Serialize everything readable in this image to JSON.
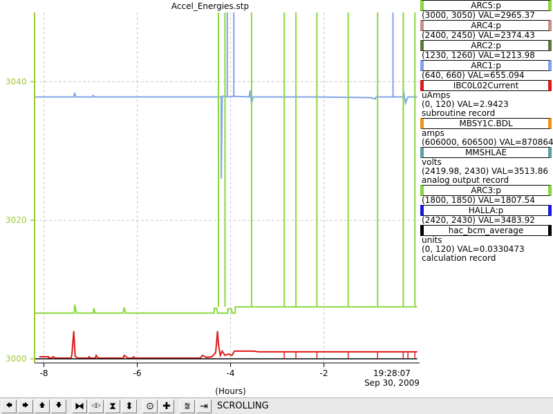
{
  "chart_data": {
    "type": "line",
    "title": "Accel_Energies.stp",
    "xlabel": "(Hours)",
    "x_ticks": [
      -8,
      -6,
      -4,
      -2
    ],
    "x_tick_labels": [
      "-8",
      "-6",
      "-4",
      "-2"
    ],
    "xlim": [
      -8.2,
      0.05
    ],
    "end_time_label": "19:28:07",
    "end_date_label": "Sep 30, 2009",
    "ylim": [
      2999.5,
      3050
    ],
    "y_ticks": [
      3000,
      3020,
      3040
    ],
    "y_tick_labels": [
      "3000",
      "3020",
      "3040"
    ],
    "axis_color": "#a0c838",
    "grid": true,
    "series": [
      {
        "name": "ARC1:p",
        "color": "#7ea4e6",
        "base": 3037.8,
        "points": [
          [
            -8.2,
            3037.8
          ],
          [
            -7.36,
            3037.8
          ],
          [
            -7.34,
            3038.4
          ],
          [
            -7.32,
            3037.8
          ],
          [
            -6.95,
            3037.8
          ],
          [
            -6.95,
            3038.0
          ],
          [
            -6.9,
            3037.8
          ],
          [
            -4.2,
            3037.8
          ],
          [
            -4.2,
            3026.0
          ],
          [
            -4.18,
            3037.9
          ],
          [
            -4.0,
            3037.8
          ],
          [
            -3.95,
            3037.9
          ],
          [
            -3.6,
            3037.8
          ],
          [
            -3.58,
            3038.7
          ],
          [
            -3.55,
            3036.8
          ],
          [
            -3.52,
            3037.8
          ],
          [
            -2.2,
            3037.8
          ],
          [
            -1.0,
            3037.7
          ],
          [
            -0.9,
            3037.5
          ],
          [
            -0.88,
            3037.8
          ],
          [
            -0.3,
            3037.8
          ],
          [
            -0.3,
            3038.8
          ],
          [
            -0.25,
            3036.9
          ],
          [
            -0.2,
            3037.8
          ],
          [
            0,
            3037.8
          ]
        ],
        "spikes": [
          {
            "x": -4.07,
            "top": 3050
          },
          {
            "x": -3.93,
            "top": 3050
          },
          {
            "x": -0.52,
            "top": 3050
          }
        ]
      },
      {
        "name": "ARC3:p",
        "color": "#88d83c",
        "points": [
          [
            -8.2,
            3006.6
          ],
          [
            -7.35,
            3006.6
          ],
          [
            -7.34,
            3007.8
          ],
          [
            -7.3,
            3006.6
          ],
          [
            -6.94,
            3006.6
          ],
          [
            -6.93,
            3007.3
          ],
          [
            -6.9,
            3006.6
          ],
          [
            -6.3,
            3006.6
          ],
          [
            -6.28,
            3007.4
          ],
          [
            -6.25,
            3006.6
          ],
          [
            -4.35,
            3006.6
          ],
          [
            -4.35,
            3007.3
          ],
          [
            -4.3,
            3007.3
          ],
          [
            -4.28,
            3006.6
          ],
          [
            -4.06,
            3006.6
          ],
          [
            -4.06,
            3007.2
          ],
          [
            -3.98,
            3007.2
          ],
          [
            -3.97,
            3006.6
          ],
          [
            -3.9,
            3006.6
          ],
          [
            -3.9,
            3007.5
          ],
          [
            0,
            3007.5
          ]
        ],
        "spikes": [
          {
            "x": -4.26,
            "top": 3050
          },
          {
            "x": -4.12,
            "top": 3050
          },
          {
            "x": -3.55,
            "top": 3050
          },
          {
            "x": -2.85,
            "top": 3050
          },
          {
            "x": -2.6,
            "top": 3050
          },
          {
            "x": -2.15,
            "top": 3050
          },
          {
            "x": -1.48,
            "top": 3050
          },
          {
            "x": -0.85,
            "top": 3050
          },
          {
            "x": -0.3,
            "top": 3050
          },
          {
            "x": -0.05,
            "top": 3050
          }
        ]
      },
      {
        "name": "IBC0L02Current",
        "color": "#e01818",
        "points": [
          [
            -8.1,
            3000.3
          ],
          [
            -7.9,
            3000.3
          ],
          [
            -7.9,
            3000.1
          ],
          [
            -7.85,
            3000.1
          ],
          [
            -7.8,
            3000.3
          ],
          [
            -7.75,
            3000.1
          ],
          [
            -7.42,
            3000.1
          ],
          [
            -7.4,
            3000.6
          ],
          [
            -7.36,
            3004.0
          ],
          [
            -7.33,
            3000.4
          ],
          [
            -7.28,
            3000.1
          ],
          [
            -7.05,
            3000.1
          ],
          [
            -7.03,
            3000.3
          ],
          [
            -7.0,
            3000.1
          ],
          [
            -6.9,
            3000.1
          ],
          [
            -6.88,
            3000.5
          ],
          [
            -6.84,
            3000.1
          ],
          [
            -6.3,
            3000.1
          ],
          [
            -6.28,
            3000.5
          ],
          [
            -6.2,
            3000.1
          ],
          [
            -6.1,
            3000.1
          ],
          [
            -6.08,
            3000.3
          ],
          [
            -6.04,
            3000.1
          ],
          [
            -4.65,
            3000.1
          ],
          [
            -4.6,
            3000.5
          ],
          [
            -4.52,
            3000.2
          ],
          [
            -4.4,
            3000.3
          ],
          [
            -4.32,
            3000.9
          ],
          [
            -4.28,
            3004.0
          ],
          [
            -4.26,
            3002.1
          ],
          [
            -4.22,
            3000.5
          ],
          [
            -4.18,
            3001.1
          ],
          [
            -4.12,
            3000.5
          ],
          [
            -4.05,
            3000.7
          ],
          [
            -3.97,
            3000.5
          ],
          [
            -3.92,
            3001.1
          ],
          [
            -3.5,
            3001.1
          ],
          [
            -3.4,
            3001.0
          ],
          [
            0,
            3001.0
          ]
        ],
        "notches": [
          -2.85,
          -2.6,
          -2.15,
          -1.48,
          -0.85,
          -0.3,
          -0.2,
          -0.05
        ]
      },
      {
        "name": "hac_bcm_average",
        "color": "#000000",
        "points": [
          [
            -8.2,
            3000.0
          ],
          [
            0,
            3000.0
          ]
        ]
      }
    ]
  },
  "legend": [
    {
      "label": "ARC5:p",
      "color": "#88d83c",
      "lines": [
        "(3000, 3050) VAL=2965.37"
      ]
    },
    {
      "label": "ARC4:p",
      "color": "#c89088",
      "lines": [
        "(2400, 2450) VAL=2374.43"
      ]
    },
    {
      "label": "ARC2:p",
      "color": "#5a7a3a",
      "lines": [
        "(1230, 1260) VAL=1213.98"
      ]
    },
    {
      "label": "ARC1:p",
      "color": "#7ea4e6",
      "lines": [
        "(640, 660) VAL=655.094"
      ]
    },
    {
      "label": "IBC0L02Current",
      "color": "#e01818",
      "lines": [
        "uAmps",
        "(0, 120) VAL=2.9423",
        "subroutine record"
      ]
    },
    {
      "label": "MBSY1C.BDL",
      "color": "#f09418",
      "lines": [
        "amps",
        "(606000, 606500) VAL=870864"
      ]
    },
    {
      "label": "MMSHLAE",
      "color": "#5a9ea4",
      "lines": [
        "volts",
        "(2419.98, 2430) VAL=3513.86",
        "analog output record"
      ]
    },
    {
      "label": "ARC3:p",
      "color": "#88d83c",
      "lines": [
        "(1800, 1850) VAL=1807.54"
      ]
    },
    {
      "label": "HALLA:p",
      "color": "#1818e0",
      "lines": [
        "(2420, 2430) VAL=3483.92"
      ]
    },
    {
      "label": "hac_bcm_average",
      "color": "#000000",
      "lines": [
        "units",
        "(0, 120) VAL=0.0330473",
        "calculation record"
      ]
    }
  ],
  "toolbar": {
    "buttons": [
      {
        "name": "scroll-left-button",
        "glyph": "🡄",
        "icon": "arrow-left-icon"
      },
      {
        "name": "scroll-right-button",
        "glyph": "🡆",
        "icon": "arrow-right-icon"
      },
      {
        "name": "scroll-up-button",
        "glyph": "🡅",
        "icon": "arrow-up-icon"
      },
      {
        "name": "scroll-down-button",
        "glyph": "🡇",
        "icon": "arrow-down-icon"
      },
      {
        "name": "zoom-in-x-button",
        "glyph": "⧓",
        "icon": "zoom-in-x-icon"
      },
      {
        "name": "zoom-out-x-button",
        "glyph": "◁▷",
        "icon": "zoom-out-x-icon"
      },
      {
        "name": "zoom-in-y-button",
        "glyph": "⧗",
        "icon": "zoom-in-y-icon"
      },
      {
        "name": "zoom-out-y-button",
        "glyph": "⬍",
        "icon": "zoom-out-y-icon"
      },
      {
        "name": "autoscale-button",
        "glyph": "⊙",
        "icon": "autoscale-icon"
      },
      {
        "name": "crosshair-button",
        "glyph": "✚",
        "icon": "crosshair-icon"
      },
      {
        "name": "config-button",
        "glyph": "⩰",
        "icon": "config-icon"
      },
      {
        "name": "go-to-end-button",
        "glyph": "⇥",
        "icon": "go-to-end-icon"
      }
    ],
    "status": "SCROLLING"
  }
}
